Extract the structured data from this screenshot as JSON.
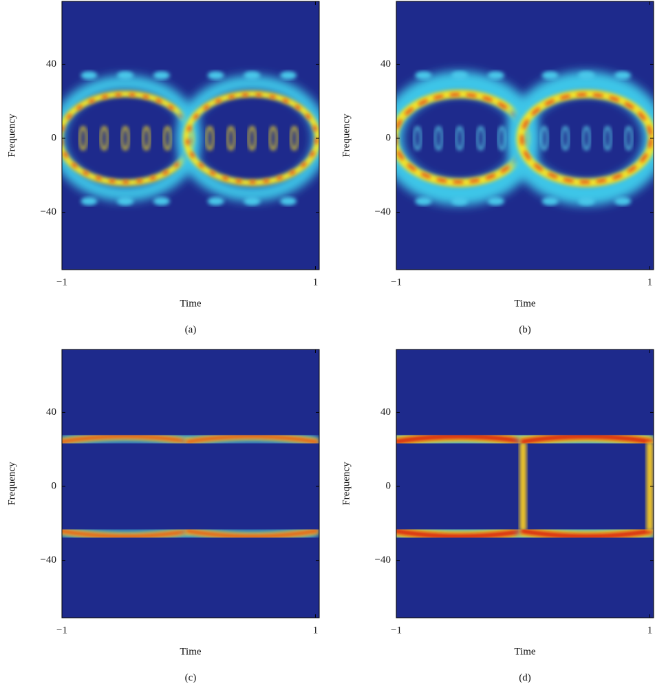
{
  "chart_data": [
    {
      "type": "heatmap",
      "caption": "(a)",
      "xlabel": "Time",
      "ylabel": "Frequency",
      "xlim": [
        -1,
        1.03
      ],
      "ylim": [
        -71,
        74
      ],
      "xticks": [
        {
          "value": -1,
          "label": "−1"
        },
        1
      ],
      "yticks": [
        {
          "value": -40,
          "label": "−40"
        },
        0,
        40
      ]
    },
    {
      "type": "heatmap",
      "caption": "(b)",
      "xlabel": "Time",
      "ylabel": "Frequency",
      "xlim": [
        -1,
        1.03
      ],
      "ylim": [
        -71,
        74
      ],
      "xticks": [
        {
          "value": -1,
          "label": "−1"
        },
        1
      ],
      "yticks": [
        {
          "value": -40,
          "label": "−40"
        },
        0,
        40
      ]
    },
    {
      "type": "heatmap",
      "caption": "(c)",
      "xlabel": "Time",
      "ylabel": "Frequency",
      "xlim": [
        -1,
        1.03
      ],
      "ylim": [
        -71,
        74
      ],
      "xticks": [
        {
          "value": -1,
          "label": "−1"
        },
        1
      ],
      "yticks": [
        {
          "value": -40,
          "label": "−40"
        },
        0,
        40
      ]
    },
    {
      "type": "heatmap",
      "caption": "(d)",
      "xlabel": "Time",
      "ylabel": "Frequency",
      "xlim": [
        -1,
        1.03
      ],
      "ylim": [
        -71,
        74
      ],
      "xticks": [
        {
          "value": -1,
          "label": "−1"
        },
        1
      ],
      "yticks": [
        {
          "value": -40,
          "label": "−40"
        },
        0,
        40
      ]
    }
  ]
}
